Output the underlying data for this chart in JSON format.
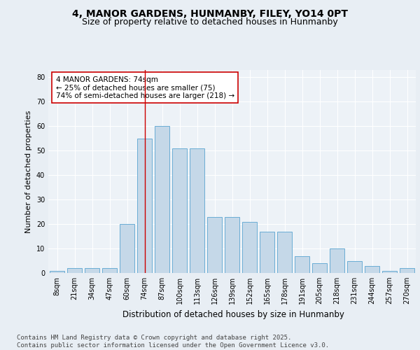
{
  "title": "4, MANOR GARDENS, HUNMANBY, FILEY, YO14 0PT",
  "subtitle": "Size of property relative to detached houses in Hunmanby",
  "xlabel": "Distribution of detached houses by size in Hunmanby",
  "ylabel": "Number of detached properties",
  "categories": [
    "8sqm",
    "21sqm",
    "34sqm",
    "47sqm",
    "60sqm",
    "74sqm",
    "87sqm",
    "100sqm",
    "113sqm",
    "126sqm",
    "139sqm",
    "152sqm",
    "165sqm",
    "178sqm",
    "191sqm",
    "205sqm",
    "218sqm",
    "231sqm",
    "244sqm",
    "257sqm",
    "270sqm"
  ],
  "values": [
    1,
    2,
    2,
    2,
    20,
    55,
    60,
    51,
    51,
    23,
    23,
    21,
    17,
    17,
    7,
    4,
    10,
    5,
    3,
    1,
    2
  ],
  "bar_color": "#c5d8e8",
  "bar_edge_color": "#6aadd5",
  "highlight_bar_index": 5,
  "highlight_line_color": "#cc0000",
  "annotation_text": "4 MANOR GARDENS: 74sqm\n← 25% of detached houses are smaller (75)\n74% of semi-detached houses are larger (218) →",
  "annotation_box_color": "#ffffff",
  "annotation_box_edge_color": "#cc0000",
  "ylim": [
    0,
    83
  ],
  "yticks": [
    0,
    10,
    20,
    30,
    40,
    50,
    60,
    70,
    80
  ],
  "footer_text": "Contains HM Land Registry data © Crown copyright and database right 2025.\nContains public sector information licensed under the Open Government Licence v3.0.",
  "background_color": "#e8eef4",
  "plot_background_color": "#edf2f7",
  "grid_color": "#ffffff",
  "title_fontsize": 10,
  "subtitle_fontsize": 9,
  "xlabel_fontsize": 8.5,
  "ylabel_fontsize": 8,
  "tick_fontsize": 7,
  "annotation_fontsize": 7.5,
  "footer_fontsize": 6.5
}
